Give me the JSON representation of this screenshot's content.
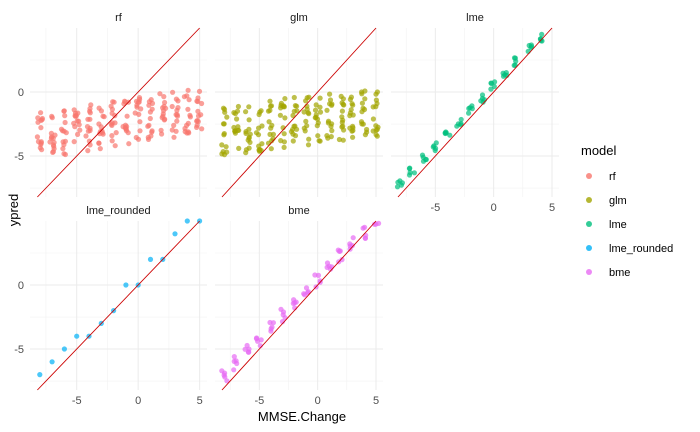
{
  "chart_data": {
    "type": "scatter",
    "xlabel": "MMSE.Change",
    "ylabel": "ypred",
    "xlim": [
      -8.8,
      5.6
    ],
    "ylim": [
      -8.2,
      5.0
    ],
    "x_ticks": [
      -5,
      0,
      5
    ],
    "y_ticks": [
      -5,
      0
    ],
    "x_tick_labels": [
      "-5",
      "0",
      "5"
    ],
    "y_tick_labels": [
      "-5",
      "0"
    ],
    "grid": true,
    "reference_line": {
      "slope": 1,
      "intercept": 0,
      "color": "#CC0000"
    },
    "legend": {
      "title": "model",
      "position": "right"
    },
    "facets": [
      {
        "name": "rf",
        "color": "#F8766D",
        "pattern": "flat",
        "fit_slope": 0.15,
        "fit_intercept": -2.2,
        "spread": 3.6
      },
      {
        "name": "glm",
        "color": "#A3A500",
        "pattern": "flat",
        "fit_slope": 0.12,
        "fit_intercept": -2.1,
        "spread": 3.9
      },
      {
        "name": "lme",
        "color": "#00BF7D",
        "pattern": "diagonal",
        "fit_slope": 0.95,
        "fit_intercept": 0.5,
        "spread": 0.7
      },
      {
        "name": "lme_rounded",
        "color": "#00B0F6",
        "pattern": "rounded",
        "fit_slope": 0.97,
        "fit_intercept": 0.4,
        "spread": 0.0
      },
      {
        "name": "bme",
        "color": "#E76BF3",
        "pattern": "diagonal",
        "fit_slope": 0.93,
        "fit_intercept": 0.4,
        "spread": 1.1
      }
    ],
    "x_values": [
      -8,
      -7,
      -6,
      -5,
      -4,
      -3,
      -2,
      -1,
      0,
      1,
      2,
      3,
      4,
      5
    ]
  }
}
